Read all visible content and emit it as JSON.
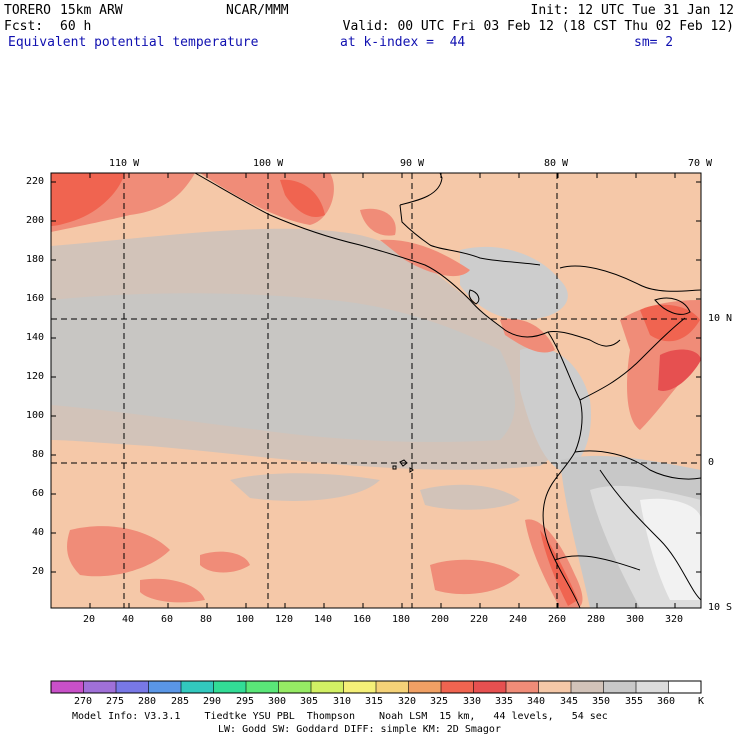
{
  "header": {
    "model_name": "TORERO",
    "resolution": "15km ARW",
    "center": "NCAR/MMM",
    "init_label": "Init: 12 UTC Tue 31 Jan 12",
    "fcst_label": "Fcst:",
    "fcst_value": "60 h",
    "valid_label": "Valid: 00 UTC Fri 03 Feb 12 (18 CST Thu 02 Feb 12)",
    "field_title": "Equivalent potential temperature",
    "level_label": "at k-index =  44",
    "smoothing": "sm= 2"
  },
  "top_lon_labels": [
    "110 W",
    "100 W",
    "90 W",
    "80 W",
    "70 W"
  ],
  "right_lat_labels": [
    "10 N",
    "0",
    "10 S"
  ],
  "y_tick_labels": [
    "220",
    "200",
    "180",
    "160",
    "140",
    "120",
    "100",
    "80",
    "60",
    "40",
    "20"
  ],
  "x_tick_labels": [
    "20",
    "40",
    "60",
    "80",
    "100",
    "120",
    "140",
    "160",
    "180",
    "200",
    "220",
    "240",
    "260",
    "280",
    "300",
    "320"
  ],
  "colorbar": {
    "unit": "K",
    "labels": [
      "270",
      "275",
      "280",
      "285",
      "290",
      "295",
      "300",
      "305",
      "310",
      "315",
      "320",
      "325",
      "330",
      "335",
      "340",
      "345",
      "350",
      "355",
      "360"
    ],
    "colors": [
      "#c850c8",
      "#a070d8",
      "#7878e6",
      "#5a96e6",
      "#32c8be",
      "#32dc96",
      "#5ae678",
      "#96eb64",
      "#d2f064",
      "#f5f078",
      "#f5d278",
      "#f0a064",
      "#f06450",
      "#e65050",
      "#f08c78",
      "#f5c8a8",
      "#d2c3b9",
      "#c8c8c8",
      "#dcdcdc",
      "#ffffff"
    ]
  },
  "footer": {
    "line1": "Model Info: V3.3.1    Tiedtke YSU PBL  Thompson    Noah LSM  15 km,   44 levels,   54 sec",
    "line2": "LW: Godd SW: Goddard DIFF: simple KM: 2D Smagor"
  }
}
